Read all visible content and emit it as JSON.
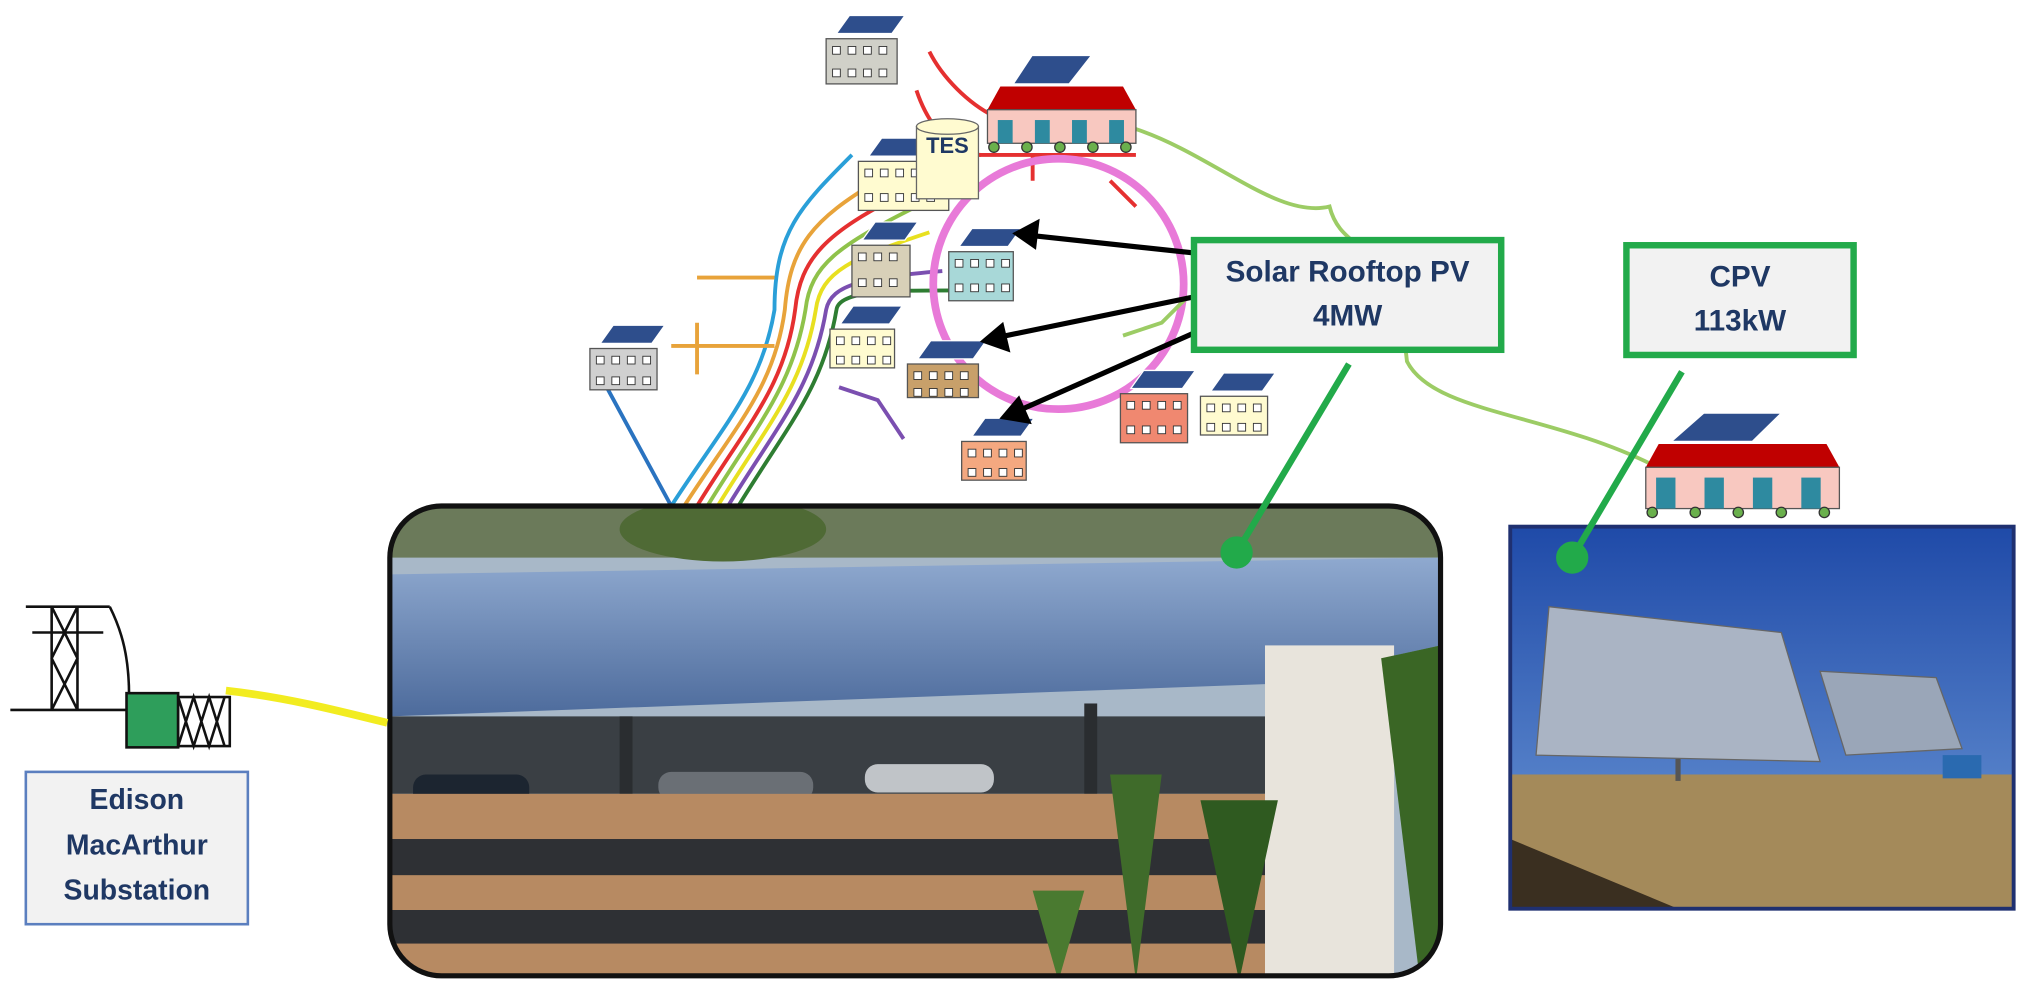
{
  "substation": {
    "lines": [
      "Edison",
      "MacArthur",
      "Substation"
    ]
  },
  "tes": "TES",
  "rooftop_pv": {
    "name": "Solar Rooftop PV",
    "capacity": "4MW"
  },
  "cpv": {
    "name": "CPV",
    "capacity": "113kW"
  }
}
